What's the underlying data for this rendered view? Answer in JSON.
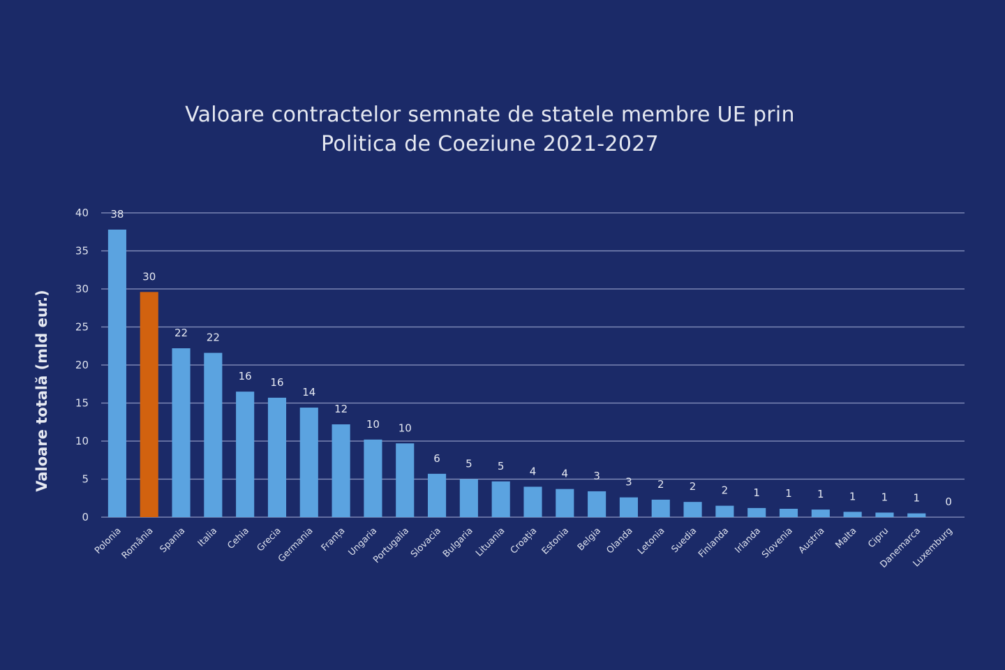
{
  "chart_data": {
    "type": "bar",
    "title_lines": [
      "Valoare contractelor semnate de statele membre UE prin",
      "Politica de Coeziune 2021-2027"
    ],
    "xlabel": "",
    "ylabel": "Valoare totală (mld eur.)",
    "ylim": [
      0,
      40
    ],
    "yticks": [
      0,
      5,
      10,
      15,
      20,
      25,
      30,
      35,
      40
    ],
    "grid": true,
    "legend": "none",
    "categories": [
      "Polonia",
      "România",
      "Spania",
      "Italia",
      "Cehia",
      "Grecia",
      "Germania",
      "Franța",
      "Ungaria",
      "Portugalia",
      "Slovacia",
      "Bulgaria",
      "Lituania",
      "Croația",
      "Estonia",
      "Belgia",
      "Olanda",
      "Letonia",
      "Suedia",
      "Finlanda",
      "Irlanda",
      "Slovenia",
      "Austria",
      "Malta",
      "Cipru",
      "Danemarca",
      "Luxemburg"
    ],
    "values": [
      37.8,
      29.6,
      22.2,
      21.6,
      16.5,
      15.7,
      14.4,
      12.2,
      10.2,
      9.7,
      5.7,
      5.0,
      4.7,
      4.0,
      3.7,
      3.4,
      2.6,
      2.3,
      2.0,
      1.5,
      1.2,
      1.1,
      1.0,
      0.7,
      0.6,
      0.5,
      0.0
    ],
    "data_labels": [
      "38",
      "30",
      "22",
      "22",
      "16",
      "16",
      "14",
      "12",
      "10",
      "10",
      "6",
      "5",
      "5",
      "4",
      "4",
      "3",
      "3",
      "2",
      "2",
      "2",
      "1",
      "1",
      "1",
      "1",
      "1",
      "1",
      "0"
    ],
    "highlight_category": "România",
    "colors": {
      "background": "#1b2a68",
      "bar": "#5ba3e0",
      "highlight": "#d2620f",
      "grid": "#8d98c2",
      "text": "#e6e9f2"
    }
  }
}
